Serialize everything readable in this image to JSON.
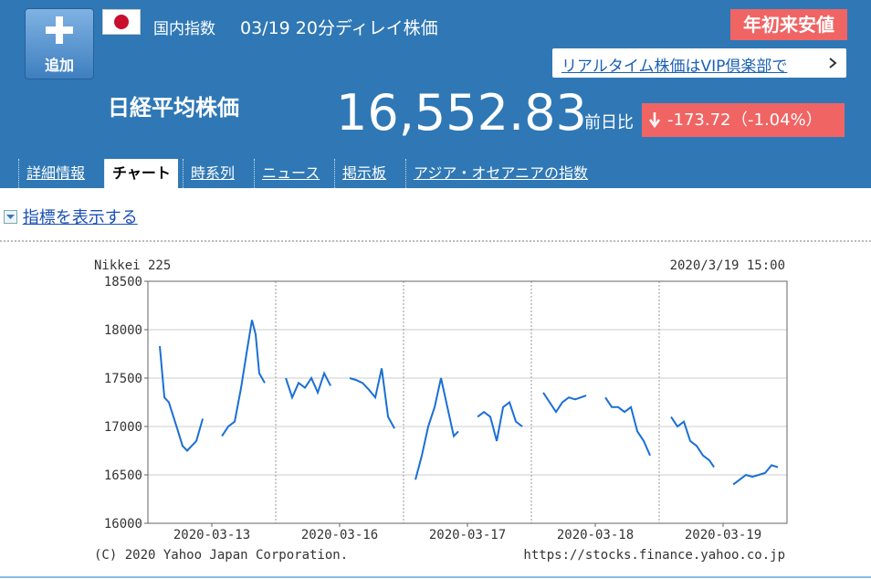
{
  "header": {
    "add_button": "追加",
    "category": "国内指数",
    "delay": "03/19 20分ディレイ株価",
    "badge": "年初来安値",
    "vip_link": "リアルタイム株価はVIP倶楽部で",
    "name": "日経平均株価",
    "price": "16,552.83",
    "change_label": "前日比",
    "change": "-173.72",
    "change_pct": "（-1.04%）"
  },
  "tabs": [
    "詳細情報",
    "チャート",
    "時系列",
    "ニュース",
    "掲示板",
    "アジア・オセアニアの指数"
  ],
  "indicator_link": "指標を表示する",
  "chart": {
    "type": "line",
    "title": "Nikkei 225",
    "timestamp": "2020/3/19 15:00",
    "copyright": "(C) 2020 Yahoo Japan Corporation.",
    "url": "https://stocks.finance.yahoo.co.jp",
    "ylim": [
      16000,
      18500
    ],
    "yticks": [
      16000,
      16500,
      17000,
      17500,
      18000,
      18500
    ],
    "xlim": [
      0,
      5
    ],
    "xticks": [
      {
        "value": 0.5,
        "label": "2020-03-13"
      },
      {
        "value": 1.5,
        "label": "2020-03-16"
      },
      {
        "value": 2.5,
        "label": "2020-03-17"
      },
      {
        "value": 3.5,
        "label": "2020-03-18"
      },
      {
        "value": 4.5,
        "label": "2020-03-19"
      }
    ],
    "xgrid": [
      1,
      2,
      3,
      4
    ],
    "grid": true,
    "color": "#1a6fd6",
    "x": [
      0.093,
      0.129,
      0.164,
      0.2,
      0.236,
      0.271,
      0.307,
      0.343,
      0.379,
      0.429,
      null,
      0.579,
      0.629,
      0.679,
      0.729,
      0.771,
      0.814,
      0.843,
      0.871,
      0.914,
      null,
      1.079,
      1.129,
      1.179,
      1.229,
      1.279,
      1.329,
      1.379,
      1.429,
      null,
      1.579,
      1.629,
      1.679,
      1.729,
      1.779,
      1.829,
      1.879,
      1.929,
      null,
      2.093,
      2.143,
      2.193,
      2.243,
      2.293,
      2.343,
      2.393,
      2.429,
      null,
      2.579,
      2.629,
      2.679,
      2.729,
      2.779,
      2.829,
      2.879,
      2.929,
      null,
      3.093,
      3.143,
      3.193,
      3.243,
      3.293,
      3.343,
      3.429,
      null,
      3.579,
      3.629,
      3.679,
      3.729,
      3.779,
      3.829,
      3.879,
      3.929,
      null,
      4.093,
      4.143,
      4.193,
      4.243,
      4.293,
      4.343,
      4.393,
      4.429,
      null,
      4.579,
      4.629,
      4.679,
      4.729,
      4.779,
      4.829,
      4.879,
      4.929
    ],
    "values": [
      17830,
      17300,
      17250,
      17100,
      16950,
      16800,
      16750,
      16800,
      16850,
      17080,
      null,
      16900,
      17000,
      17050,
      17400,
      17750,
      18100,
      17950,
      17550,
      17450,
      null,
      17500,
      17300,
      17450,
      17400,
      17500,
      17350,
      17550,
      17420,
      null,
      17500,
      17480,
      17450,
      17380,
      17300,
      17600,
      17100,
      16980,
      null,
      16450,
      16700,
      17000,
      17200,
      17500,
      17200,
      16900,
      16950,
      null,
      17100,
      17150,
      17100,
      16850,
      17200,
      17250,
      17050,
      17000,
      null,
      17350,
      17250,
      17150,
      17250,
      17300,
      17280,
      17320,
      null,
      17300,
      17200,
      17200,
      17150,
      17200,
      16950,
      16850,
      16700,
      null,
      17100,
      17000,
      17050,
      16850,
      16800,
      16700,
      16650,
      16580,
      null,
      16400,
      16450,
      16500,
      16480,
      16500,
      16520,
      16600,
      16580
    ]
  }
}
